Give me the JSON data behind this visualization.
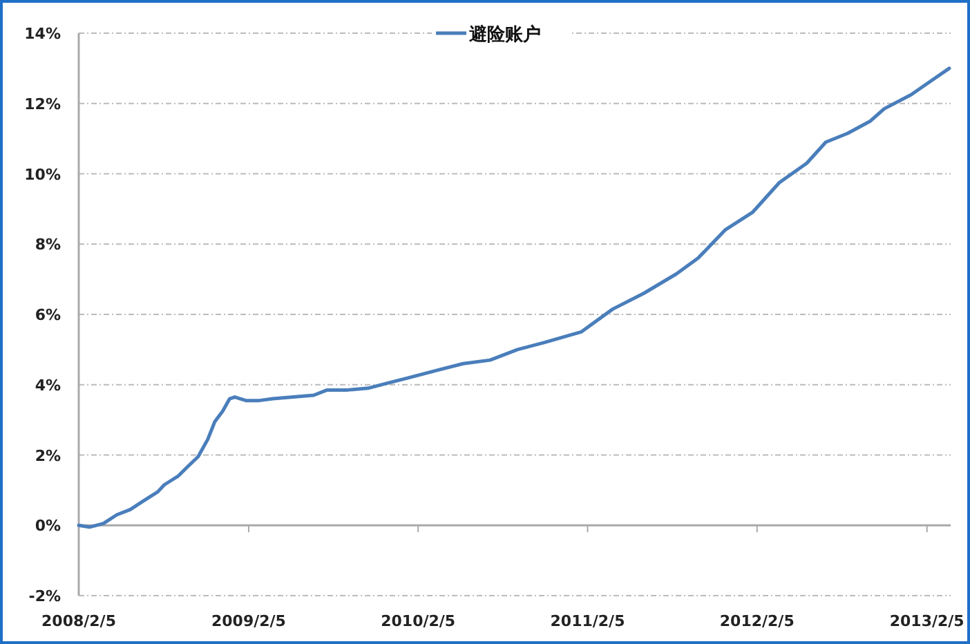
{
  "chart_data": {
    "type": "line",
    "legend": "top",
    "grid": "y",
    "marker": "none",
    "line_style": "solid",
    "x": [
      "2008-02-05",
      "2008-02-28",
      "2008-03-29",
      "2008-04-27",
      "2008-05-26",
      "2008-06-24",
      "2008-07-24",
      "2008-08-07",
      "2008-09-06",
      "2008-09-29",
      "2008-10-19",
      "2008-11-09",
      "2008-11-24",
      "2008-12-11",
      "2008-12-26",
      "2009-01-06",
      "2009-01-30",
      "2009-02-28",
      "2009-03-29",
      "2009-05-12",
      "2009-06-25",
      "2009-07-24",
      "2009-09-06",
      "2009-10-20",
      "2009-12-03",
      "2010-01-16",
      "2010-03-15",
      "2010-05-13",
      "2010-07-10",
      "2010-09-07",
      "2010-11-04",
      "2011-01-22",
      "2011-03-31",
      "2011-06-06",
      "2011-08-15",
      "2011-10-01",
      "2011-11-28",
      "2012-01-26",
      "2012-03-24",
      "2012-05-22",
      "2012-07-02",
      "2012-08-18",
      "2012-10-06",
      "2012-11-05",
      "2013-01-02",
      "2013-02-09",
      "2013-03-25"
    ],
    "series": [
      {
        "name": "避险账户",
        "color": "#4a7ebb",
        "values": [
          0,
          -0.05,
          0.05,
          0.3,
          0.45,
          0.7,
          0.95,
          1.15,
          1.4,
          1.7,
          1.95,
          2.45,
          2.95,
          3.25,
          3.6,
          3.65,
          3.55,
          3.55,
          3.6,
          3.65,
          3.7,
          3.85,
          3.85,
          3.9,
          4.05,
          4.2,
          4.4,
          4.6,
          4.7,
          5.0,
          5.2,
          5.5,
          6.15,
          6.6,
          7.15,
          7.6,
          8.4,
          8.9,
          9.75,
          10.3,
          10.9,
          11.15,
          11.5,
          11.85,
          12.25,
          12.6,
          13.0
        ]
      }
    ],
    "xlim": [
      "2008-02-05",
      "2013-03-28"
    ],
    "xticks": [
      {
        "value": "2008-02-05",
        "label": "2008/2/5"
      },
      {
        "value": "2009-02-05",
        "label": "2009/2/5"
      },
      {
        "value": "2010-02-05",
        "label": "2010/2/5"
      },
      {
        "value": "2011-02-05",
        "label": "2011/2/5"
      },
      {
        "value": "2012-02-05",
        "label": "2012/2/5"
      },
      {
        "value": "2013-02-05",
        "label": "2013/2/5"
      }
    ],
    "ylim": [
      -2,
      14
    ],
    "yticks": [
      {
        "value": -2,
        "label": "-2%"
      },
      {
        "value": 0,
        "label": "0%"
      },
      {
        "value": 2,
        "label": "2%"
      },
      {
        "value": 4,
        "label": "4%"
      },
      {
        "value": 6,
        "label": "6%"
      },
      {
        "value": 8,
        "label": "8%"
      },
      {
        "value": 10,
        "label": "10%"
      },
      {
        "value": 12,
        "label": "12%"
      },
      {
        "value": 14,
        "label": "14%"
      }
    ]
  }
}
